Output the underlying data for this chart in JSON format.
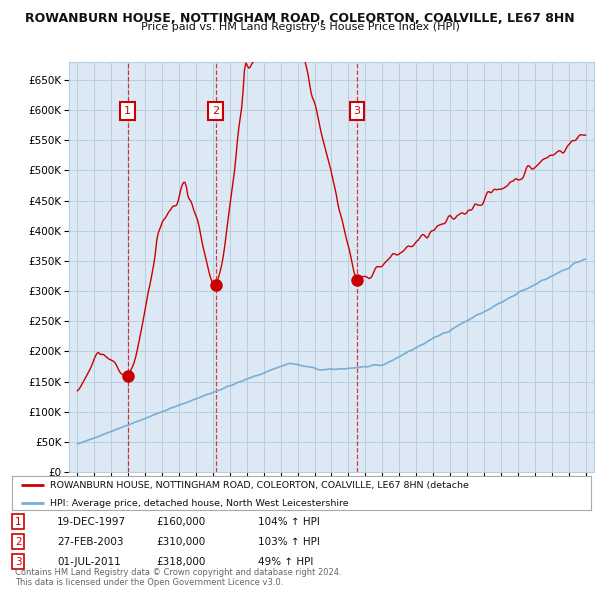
{
  "title": "ROWANBURN HOUSE, NOTTINGHAM ROAD, COLEORTON, COALVILLE, LE67 8HN",
  "subtitle": "Price paid vs. HM Land Registry's House Price Index (HPI)",
  "legend_line1": "ROWANBURN HOUSE, NOTTINGHAM ROAD, COLEORTON, COALVILLE, LE67 8HN (detache",
  "legend_line2": "HPI: Average price, detached house, North West Leicestershire",
  "footer": "Contains HM Land Registry data © Crown copyright and database right 2024.\nThis data is licensed under the Open Government Licence v3.0.",
  "sale_color": "#cc0000",
  "hpi_color": "#7aadd4",
  "background_color": "#ffffff",
  "plot_bg_color": "#dce9f5",
  "grid_color": "#b8cfe0",
  "transactions": [
    {
      "id": 1,
      "date": "19-DEC-1997",
      "price": 160000,
      "pct": "104%",
      "dir": "↑",
      "year": 1997.97
    },
    {
      "id": 2,
      "date": "27-FEB-2003",
      "price": 310000,
      "pct": "103%",
      "dir": "↑",
      "year": 2003.16
    },
    {
      "id": 3,
      "date": "01-JUL-2011",
      "price": 318000,
      "pct": "49%",
      "dir": "↑",
      "year": 2011.5
    }
  ],
  "ylim": [
    0,
    680000
  ],
  "yticks": [
    0,
    50000,
    100000,
    150000,
    200000,
    250000,
    300000,
    350000,
    400000,
    450000,
    500000,
    550000,
    600000,
    650000
  ],
  "xlim": [
    1994.5,
    2025.5
  ],
  "xticks": [
    1995,
    1996,
    1997,
    1998,
    1999,
    2000,
    2001,
    2002,
    2003,
    2004,
    2005,
    2006,
    2007,
    2008,
    2009,
    2010,
    2011,
    2012,
    2013,
    2014,
    2015,
    2016,
    2017,
    2018,
    2019,
    2020,
    2021,
    2022,
    2023,
    2024,
    2025
  ]
}
